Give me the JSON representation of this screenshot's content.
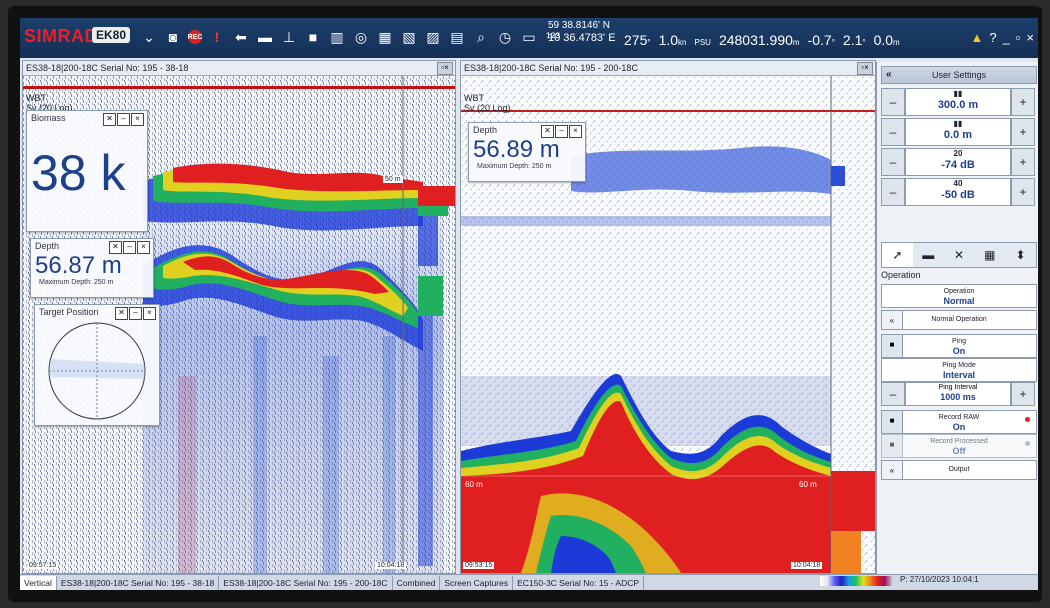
{
  "toolbar": {
    "brand": "SIMRAD",
    "model": "EK80",
    "latitude": "59 38.8146' N",
    "longitude": "10 36.4783' E",
    "heading": "275",
    "heading_unit": "°",
    "speed": "1.0",
    "speed_unit": "kn",
    "salinity_unit": "PSU",
    "distance": "248031.990",
    "distance_unit": "m",
    "heave": "-0.7",
    "heave_unit": "°",
    "roll": "2.1",
    "roll_unit": "°",
    "pitch": "0.0",
    "pitch_unit": "m",
    "alarm_icon": "warning-icon",
    "help": "?",
    "minimize": "_",
    "restore": "▫",
    "close": "×"
  },
  "left_pane": {
    "title": "ES38-18|200-18C Serial No: 195 - 38-18",
    "top_label": "WBT",
    "variable_label": "Sv (20 Log)",
    "range_label": "50 m",
    "timestamp": "10:04:18",
    "left_time": "09:57:15"
  },
  "right_pane": {
    "title": "ES38-18|200-18C Serial No: 195 - 200-18C",
    "top_label": "WBT",
    "variable_label": "Sv (20 Log)",
    "range_left": "60 m",
    "range_right": "60 m",
    "time_left": "09:53:15",
    "time_right": "10:04:18"
  },
  "biomass_widget": {
    "title": "Biomass",
    "value": "38 k"
  },
  "depth_widget_left": {
    "title": "Depth",
    "value": "56.87 m",
    "sub": "Maximum Depth: 250 m"
  },
  "depth_widget_right": {
    "title": "Depth",
    "value": "56.89 m",
    "sub": "Maximum Depth: 250 m"
  },
  "target_widget": {
    "title": "Target Position"
  },
  "side_panel": {
    "header": "User Settings",
    "steppers": [
      {
        "value": "300.0 m"
      },
      {
        "value": "0.0 m"
      },
      {
        "value": "-74 dB",
        "sup": "20"
      },
      {
        "value": "-50 dB",
        "sup": "40"
      }
    ],
    "section": "Operation",
    "operation_label": "Operation",
    "operation_value": "Normal",
    "normal_operation": "Normal Operation",
    "ping_label": "Ping",
    "ping_value": "On",
    "ping_mode_label": "Ping Mode",
    "ping_mode_value": "Interval",
    "ping_interval_label": "Ping Interval",
    "ping_interval_value": "1000 ms",
    "record_raw_label": "Record RAW",
    "record_raw_value": "On",
    "record_processed_label": "Record Processed",
    "record_processed_value": "Off",
    "output": "Output"
  },
  "bottom_tabs": [
    "Vertical",
    "ES38-18|200-18C Serial No: 195 - 38-18",
    "ES38-18|200-18C Serial No: 195 - 200-18C",
    "Combined",
    "Screen Captures",
    "EC150-3C Serial No: 15 - ADCP"
  ],
  "status": {
    "date": "P: 27/10/2023 10:04:1"
  }
}
